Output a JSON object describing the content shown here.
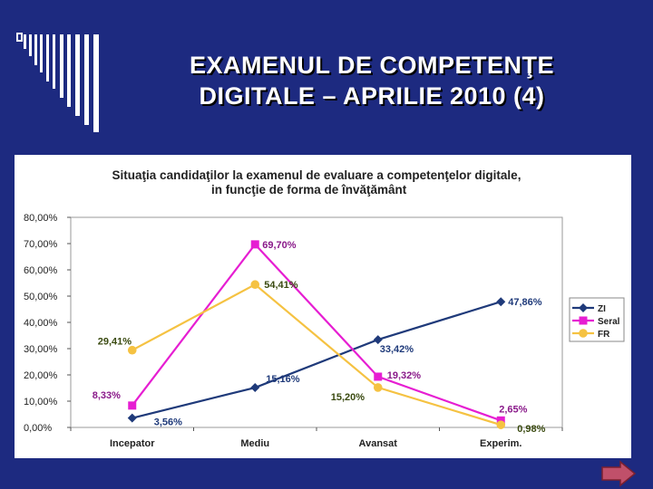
{
  "slide": {
    "title_line1": "EXAMENUL DE COMPETENŢE",
    "title_line2": "DIGITALE – APRILIE 2010 (4)"
  },
  "colors": {
    "background": "#1d2a80",
    "zi": "#1f3a7a",
    "seral": "#e61ed2",
    "fr": "#f5c242"
  },
  "chart_data": {
    "type": "line",
    "title_line1": "Situaţia candidaţilor la examenul de evaluare a competenţelor digitale,",
    "title_line2": "in funcţie de forma de învăţământ",
    "categories": [
      "Incepator",
      "Mediu",
      "Avansat",
      "Experim."
    ],
    "ylim": [
      0,
      80
    ],
    "yticks": [
      "0,00%",
      "10,00%",
      "20,00%",
      "30,00%",
      "40,00%",
      "50,00%",
      "60,00%",
      "70,00%",
      "80,00%"
    ],
    "grid": false,
    "legend_position": "right",
    "series": [
      {
        "name": "ZI",
        "values": [
          3.56,
          15.16,
          33.42,
          47.86
        ],
        "labels": [
          "3,56%",
          "15,16%",
          "33,42%",
          "47,86%"
        ],
        "color": "#1f3a7a",
        "marker": "diamond"
      },
      {
        "name": "Seral",
        "values": [
          8.33,
          69.7,
          19.32,
          2.65
        ],
        "labels": [
          "8,33%",
          "69,70%",
          "19,32%",
          "2,65%"
        ],
        "color": "#e61ed2",
        "marker": "square"
      },
      {
        "name": "FR",
        "values": [
          29.41,
          54.41,
          15.2,
          0.98
        ],
        "labels": [
          "29,41%",
          "54,41%",
          "15,20%",
          "0,98%"
        ],
        "color": "#f5c242",
        "marker": "circle"
      }
    ]
  }
}
